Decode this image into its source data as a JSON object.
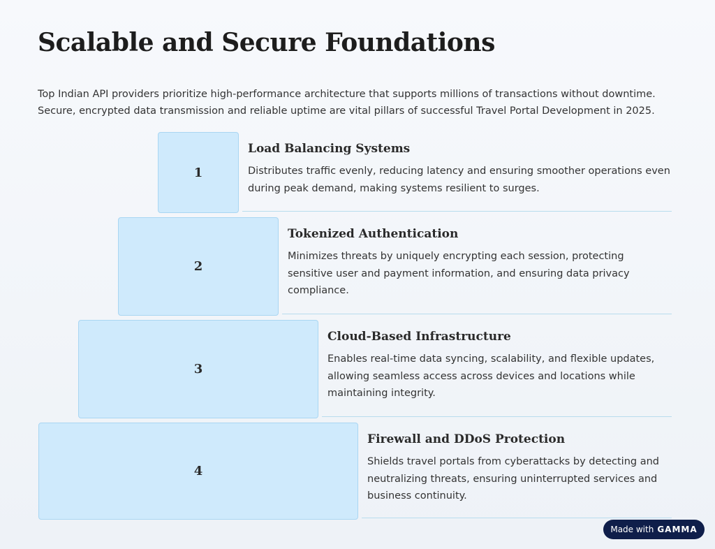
{
  "header": {
    "title": "Scalable and Secure Foundations",
    "intro": "Top Indian API providers prioritize high-performance architecture that supports millions of transactions without downtime. Secure, encrypted data transmission and reliable uptime are vital pillars of successful Travel Portal Development in 2025."
  },
  "steps": [
    {
      "number": "1",
      "title": "Load Balancing Systems",
      "text": "Distributes traffic evenly, reducing latency and ensuring smoother operations even during peak demand, making systems resilient to surges."
    },
    {
      "number": "2",
      "title": "Tokenized Authentication",
      "text": "Minimizes threats by uniquely encrypting each session, protecting sensitive user and payment information, and ensuring data privacy compliance."
    },
    {
      "number": "3",
      "title": "Cloud-Based Infrastructure",
      "text": "Enables real-time data syncing, scalability, and flexible updates, allowing seamless access across devices and locations while maintaining integrity."
    },
    {
      "number": "4",
      "title": "Firewall and DDoS Protection",
      "text": "Shields travel portals from cyberattacks by detecting and neutralizing threats, ensuring uninterrupted services and business continuity."
    }
  ],
  "badge": {
    "text": "Made with",
    "brand": "GAMMA"
  }
}
